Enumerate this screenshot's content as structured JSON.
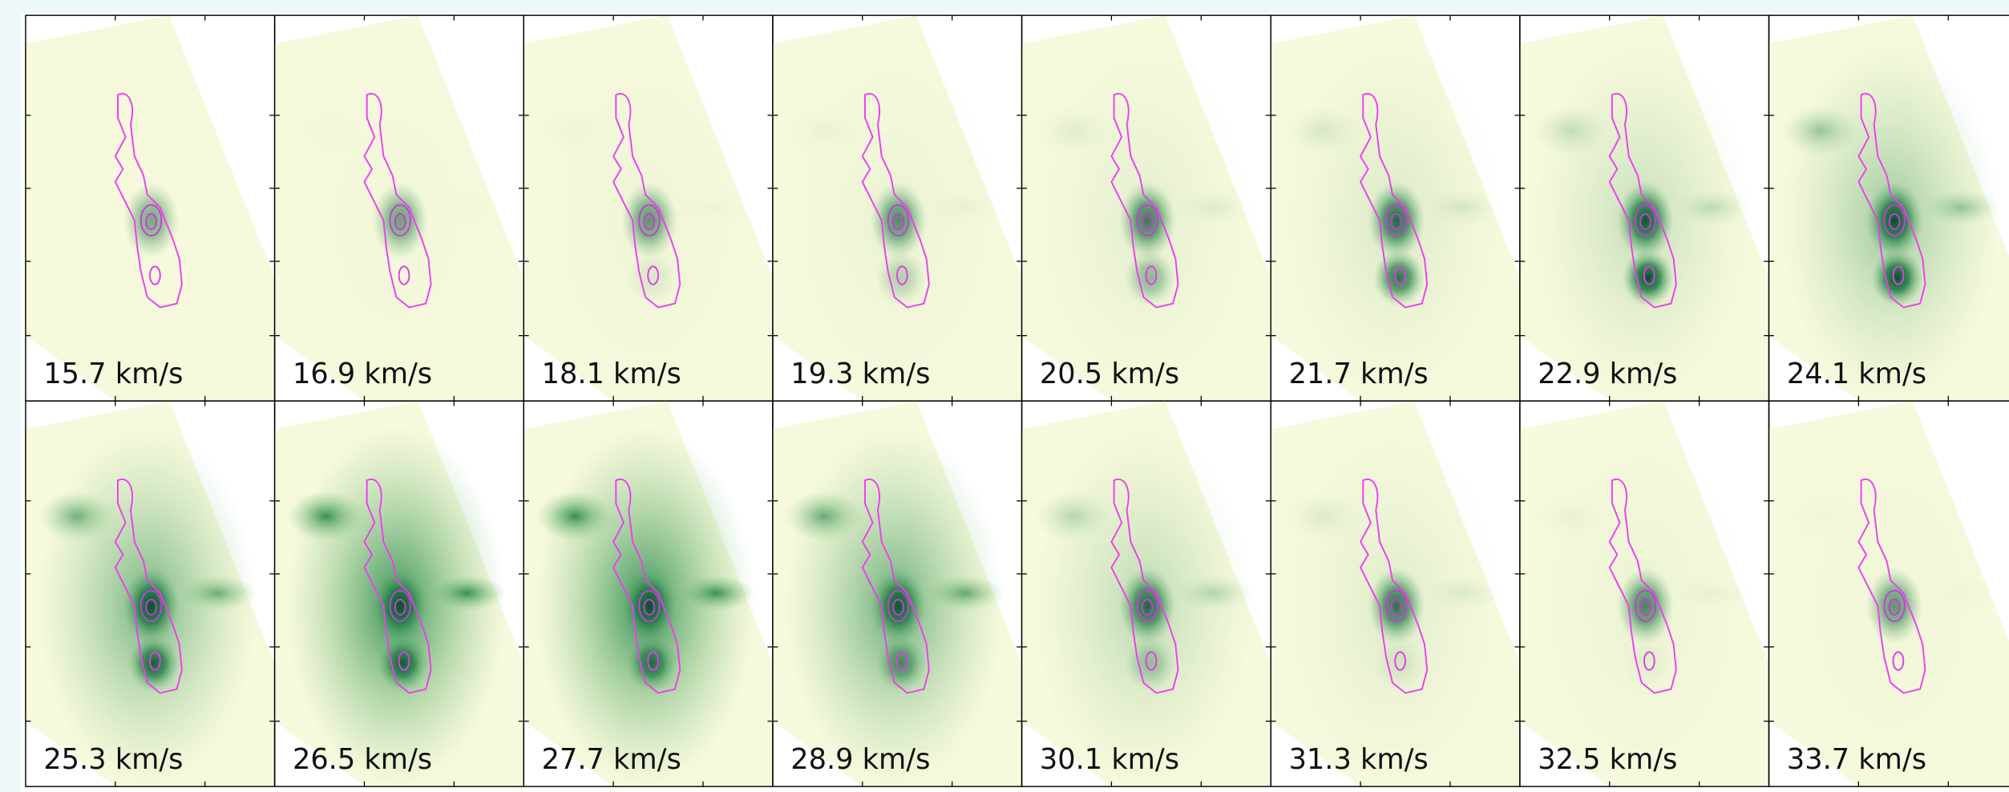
{
  "panels": [
    {
      "label": "15.7 km/s"
    },
    {
      "label": "16.9 km/s"
    },
    {
      "label": "18.1 km/s"
    },
    {
      "label": "19.3 km/s"
    },
    {
      "label": "20.5 km/s"
    },
    {
      "label": "21.7 km/s"
    },
    {
      "label": "22.9 km/s"
    },
    {
      "label": "24.1 km/s"
    },
    {
      "label": "25.3 km/s"
    },
    {
      "label": "26.5 km/s"
    },
    {
      "label": "27.7 km/s"
    },
    {
      "label": "28.9 km/s"
    },
    {
      "label": "30.1 km/s"
    },
    {
      "label": "31.3 km/s"
    },
    {
      "label": "32.5 km/s"
    },
    {
      "label": "33.7 km/s"
    }
  ]
}
